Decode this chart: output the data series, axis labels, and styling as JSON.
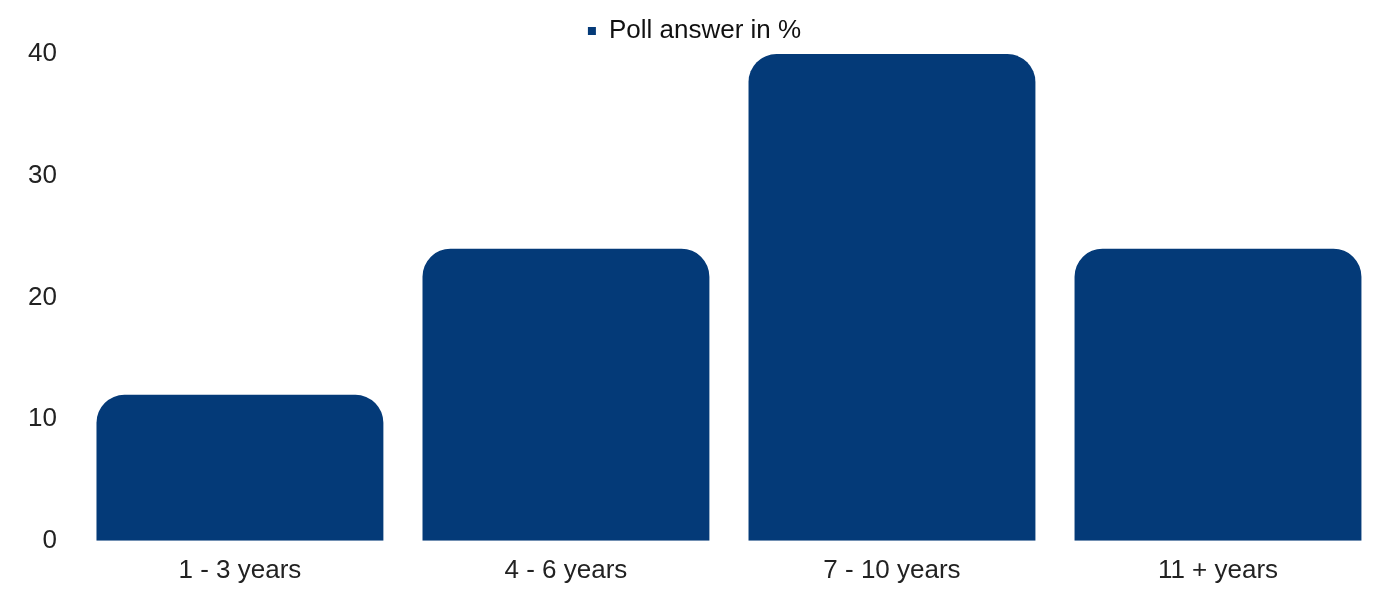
{
  "chart_data": {
    "type": "bar",
    "categories": [
      "1 - 3 years",
      "4 - 6 years",
      "7 - 10 years",
      "11 + years"
    ],
    "series": [
      {
        "name": "Poll answer in %",
        "color": "#043a78",
        "values": [
          12,
          24,
          40,
          24
        ]
      }
    ],
    "ylim": [
      0,
      40
    ],
    "yticks": [
      0,
      10,
      20,
      30,
      40
    ],
    "grid": false,
    "legend": "top"
  }
}
